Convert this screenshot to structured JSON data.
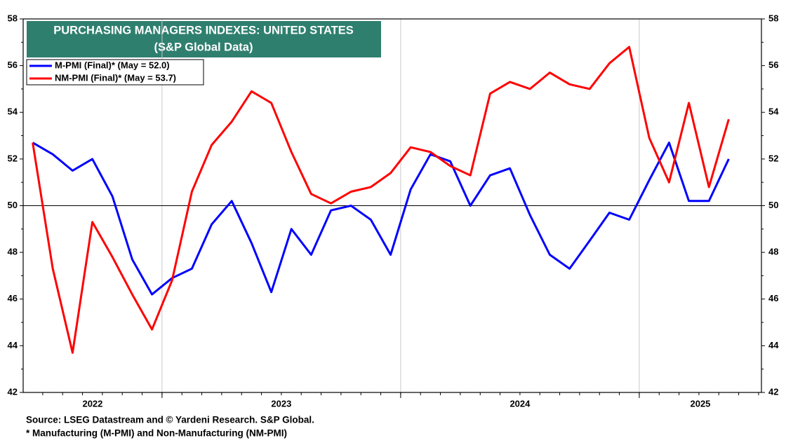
{
  "chart_data": {
    "type": "line",
    "title": "PURCHASING MANAGERS INDEXES: UNITED STATES",
    "subtitle": "(S&P Global Data)",
    "source": "Source: LSEG Datastream and © Yardeni Research. S&P Global.",
    "note": "* Manufacturing (M-PMI) and Non-Manufacturing (NM-PMI)",
    "x": [
      2022.458,
      2022.542,
      2022.625,
      2022.708,
      2022.792,
      2022.875,
      2022.958,
      2023.042,
      2023.125,
      2023.208,
      2023.292,
      2023.375,
      2023.458,
      2023.542,
      2023.625,
      2023.708,
      2023.792,
      2023.875,
      2023.958,
      2024.042,
      2024.125,
      2024.208,
      2024.292,
      2024.375,
      2024.458,
      2024.542,
      2024.625,
      2024.708,
      2024.792,
      2024.875,
      2024.958,
      2025.042,
      2025.125,
      2025.208,
      2025.292,
      2025.375
    ],
    "series": [
      {
        "name": "M-PMI (Final)* (May = 52.0)",
        "color": "#0000ff",
        "values": [
          52.7,
          52.2,
          51.5,
          52.0,
          50.4,
          47.7,
          46.2,
          46.9,
          47.3,
          49.2,
          50.2,
          48.4,
          46.3,
          49.0,
          47.9,
          49.8,
          50.0,
          49.4,
          47.9,
          50.7,
          52.2,
          51.9,
          50.0,
          51.3,
          51.6,
          49.6,
          47.9,
          47.3,
          48.5,
          49.7,
          49.4,
          51.1,
          52.7,
          50.2,
          50.2,
          52.0
        ]
      },
      {
        "name": "NM-PMI (Final)* (May = 53.7)",
        "color": "#ff0000",
        "values": [
          52.7,
          47.3,
          43.7,
          49.3,
          47.8,
          46.2,
          44.7,
          46.8,
          50.6,
          52.6,
          53.6,
          54.9,
          54.4,
          52.3,
          50.5,
          50.1,
          50.6,
          50.8,
          51.4,
          52.5,
          52.3,
          51.7,
          51.3,
          54.8,
          55.3,
          55.0,
          55.7,
          55.2,
          55.0,
          56.1,
          56.8,
          52.9,
          51.0,
          54.4,
          50.8,
          53.7
        ]
      }
    ],
    "xlim": [
      2022.418,
      2025.512
    ],
    "xticks": [
      2023,
      2024,
      2025
    ],
    "year_labels": [
      "2022",
      "2023",
      "2024",
      "2025"
    ],
    "ylim": [
      42,
      58
    ],
    "yticks": [
      42,
      44,
      46,
      48,
      50,
      52,
      54,
      56,
      58
    ],
    "hline": 50,
    "title_color": "#2f7f6f",
    "legend": "upper left"
  }
}
